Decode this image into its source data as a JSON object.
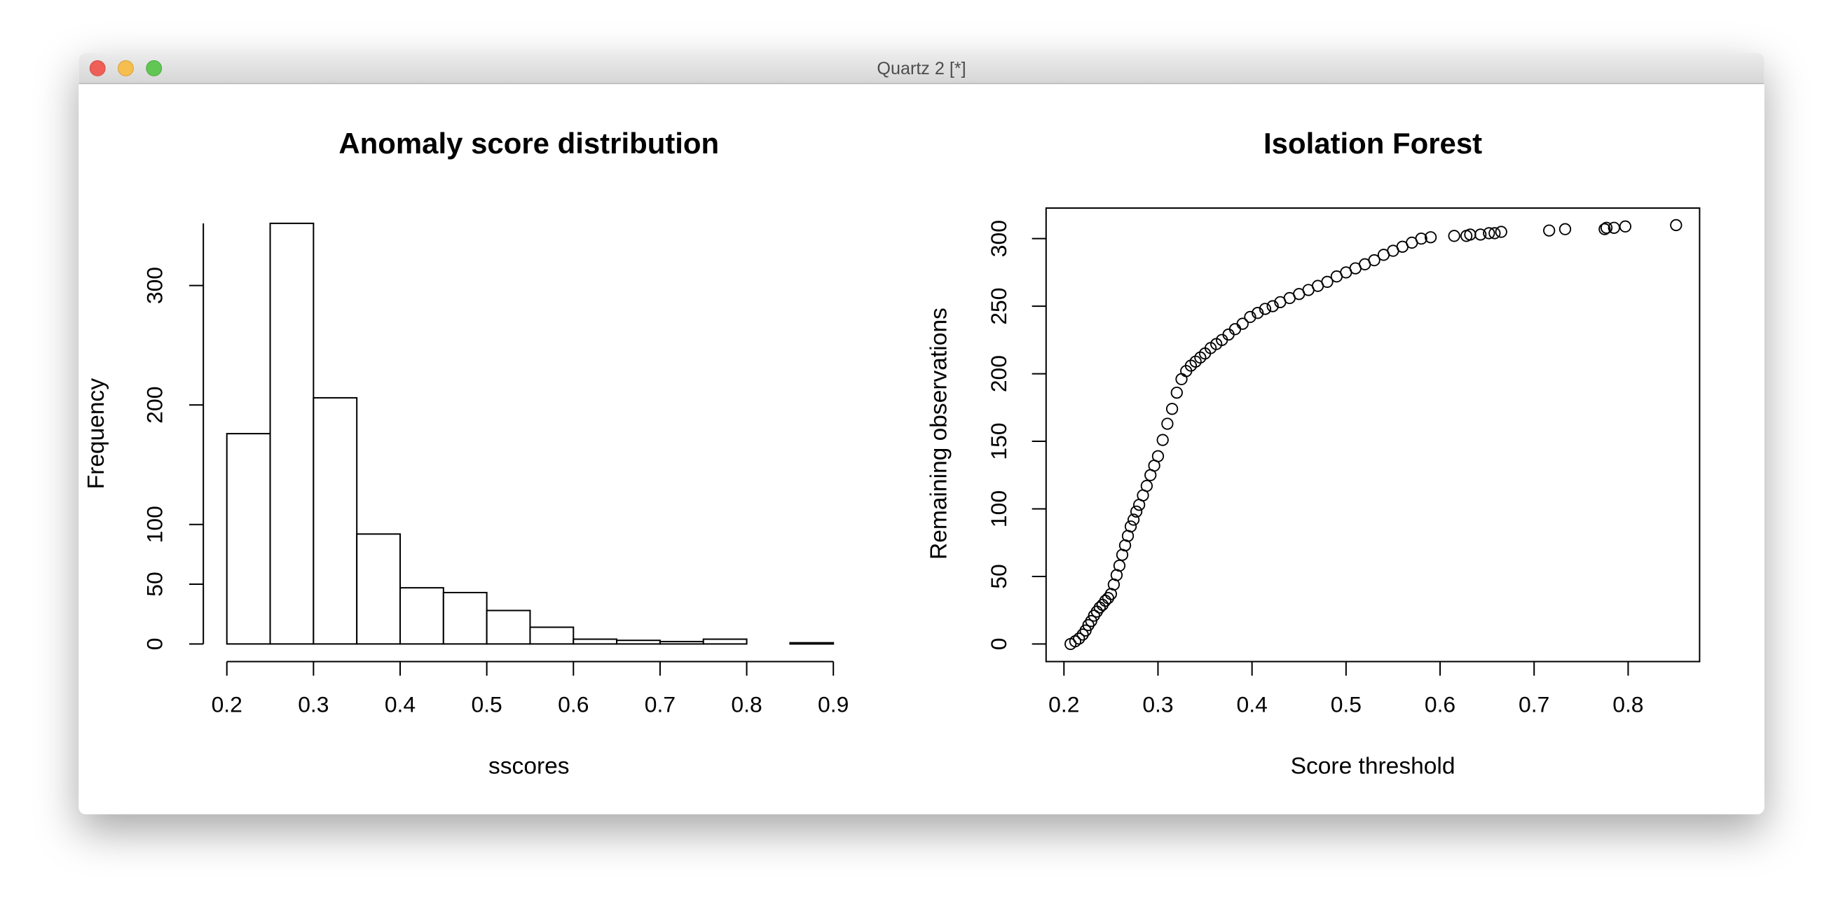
{
  "window": {
    "title": "Quartz 2 [*]"
  },
  "chart_data": [
    {
      "type": "histogram",
      "title": "Anomaly score distribution",
      "x_label": "sscores",
      "y_label": "Frequency",
      "bins": [
        0.2,
        0.25,
        0.3,
        0.35,
        0.4,
        0.45,
        0.5,
        0.55,
        0.6,
        0.65,
        0.7,
        0.75,
        0.8,
        0.85,
        0.9
      ],
      "values": [
        176,
        352,
        206,
        92,
        47,
        43,
        28,
        14,
        4,
        3,
        2,
        4,
        0,
        1
      ],
      "color": "#ffffff",
      "xlim": [
        0.2,
        0.9
      ],
      "xticks": [
        0.2,
        0.3,
        0.4,
        0.5,
        0.6,
        0.7,
        0.8,
        0.9
      ],
      "ylim": [
        0,
        352
      ],
      "yticks": [
        0,
        50,
        100,
        200,
        300
      ]
    },
    {
      "type": "scatter",
      "title": "Isolation Forest",
      "x_label": "Score threshold",
      "y_label": "Remaining observations",
      "x": [
        0.207,
        0.212,
        0.216,
        0.22,
        0.223,
        0.226,
        0.229,
        0.232,
        0.235,
        0.238,
        0.241,
        0.244,
        0.247,
        0.25,
        0.253,
        0.256,
        0.259,
        0.262,
        0.265,
        0.268,
        0.271,
        0.274,
        0.277,
        0.28,
        0.284,
        0.288,
        0.292,
        0.296,
        0.3,
        0.305,
        0.31,
        0.315,
        0.32,
        0.325,
        0.33,
        0.335,
        0.34,
        0.345,
        0.35,
        0.356,
        0.362,
        0.368,
        0.375,
        0.382,
        0.39,
        0.398,
        0.406,
        0.414,
        0.422,
        0.43,
        0.44,
        0.45,
        0.46,
        0.47,
        0.48,
        0.49,
        0.5,
        0.51,
        0.52,
        0.53,
        0.54,
        0.55,
        0.56,
        0.57,
        0.58,
        0.59,
        0.615,
        0.628,
        0.632,
        0.643,
        0.652,
        0.658,
        0.665,
        0.716,
        0.733,
        0.775,
        0.777,
        0.785,
        0.797,
        0.851
      ],
      "values": [
        0,
        2,
        4,
        7,
        10,
        14,
        17,
        21,
        24,
        27,
        29,
        32,
        34,
        37,
        44,
        51,
        58,
        66,
        73,
        80,
        87,
        92,
        98,
        103,
        110,
        117,
        125,
        132,
        139,
        151,
        163,
        174,
        186,
        196,
        202,
        206,
        209,
        212,
        215,
        219,
        222,
        225,
        229,
        233,
        237,
        242,
        245,
        248,
        250,
        253,
        256,
        259,
        262,
        265,
        268,
        272,
        275,
        278,
        281,
        284,
        288,
        291,
        294,
        297,
        300,
        301,
        302,
        302,
        303,
        303,
        304,
        304,
        305,
        306,
        307,
        307,
        308,
        308,
        309,
        310
      ],
      "color": "#000000",
      "xlim": [
        0.181,
        0.876
      ],
      "xticks": [
        0.2,
        0.3,
        0.4,
        0.5,
        0.6,
        0.7,
        0.8
      ],
      "ylim": [
        -13,
        322.6
      ],
      "yticks": [
        0,
        50,
        100,
        150,
        200,
        250,
        300
      ]
    }
  ]
}
